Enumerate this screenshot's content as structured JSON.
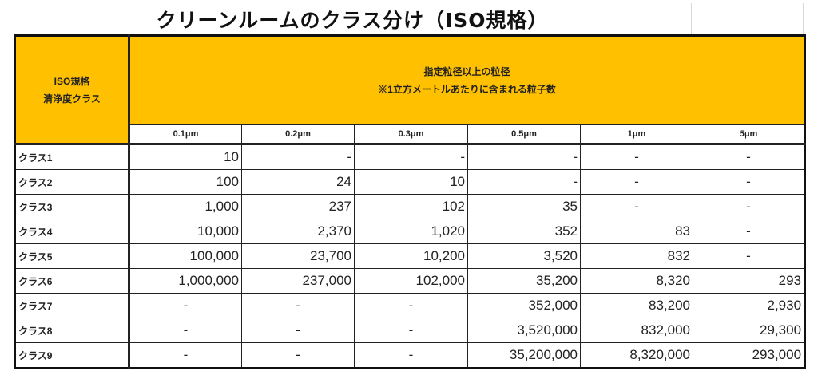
{
  "title": "クリーンルームのクラス分け（ISO規格）",
  "header": {
    "corner_line1": "ISO規格",
    "corner_line2": "清浄度クラス",
    "main_line1": "指定粒径以上の粒径",
    "main_line2": "※1立方メートルあたりに含まれる粒子数",
    "units": [
      "0.1μm",
      "0.2μm",
      "0.3μm",
      "0.5μm",
      "1μm",
      "5μm"
    ]
  },
  "rows": [
    {
      "label": "クラス1",
      "values": [
        "10",
        "-",
        "-",
        "-",
        "-",
        "-"
      ]
    },
    {
      "label": "クラス2",
      "values": [
        "100",
        "24",
        "10",
        "-",
        "-",
        "-"
      ]
    },
    {
      "label": "クラス3",
      "values": [
        "1,000",
        "237",
        "102",
        "35",
        "-",
        "-"
      ]
    },
    {
      "label": "クラス4",
      "values": [
        "10,000",
        "2,370",
        "1,020",
        "352",
        "83",
        "-"
      ]
    },
    {
      "label": "クラス5",
      "values": [
        "100,000",
        "23,700",
        "10,200",
        "3,520",
        "832",
        "-"
      ]
    },
    {
      "label": "クラス6",
      "values": [
        "1,000,000",
        "237,000",
        "102,000",
        "35,200",
        "8,320",
        "293"
      ]
    },
    {
      "label": "クラス7",
      "values": [
        "-",
        "-",
        "-",
        "352,000",
        "83,200",
        "2,930"
      ]
    },
    {
      "label": "クラス8",
      "values": [
        "-",
        "-",
        "-",
        "3,520,000",
        "832,000",
        "29,300"
      ]
    },
    {
      "label": "クラス9",
      "values": [
        "-",
        "-",
        "-",
        "35,200,000",
        "8,320,000",
        "293,000"
      ]
    }
  ],
  "colors": {
    "header_bg": "#ffc000",
    "border": "#111111"
  }
}
